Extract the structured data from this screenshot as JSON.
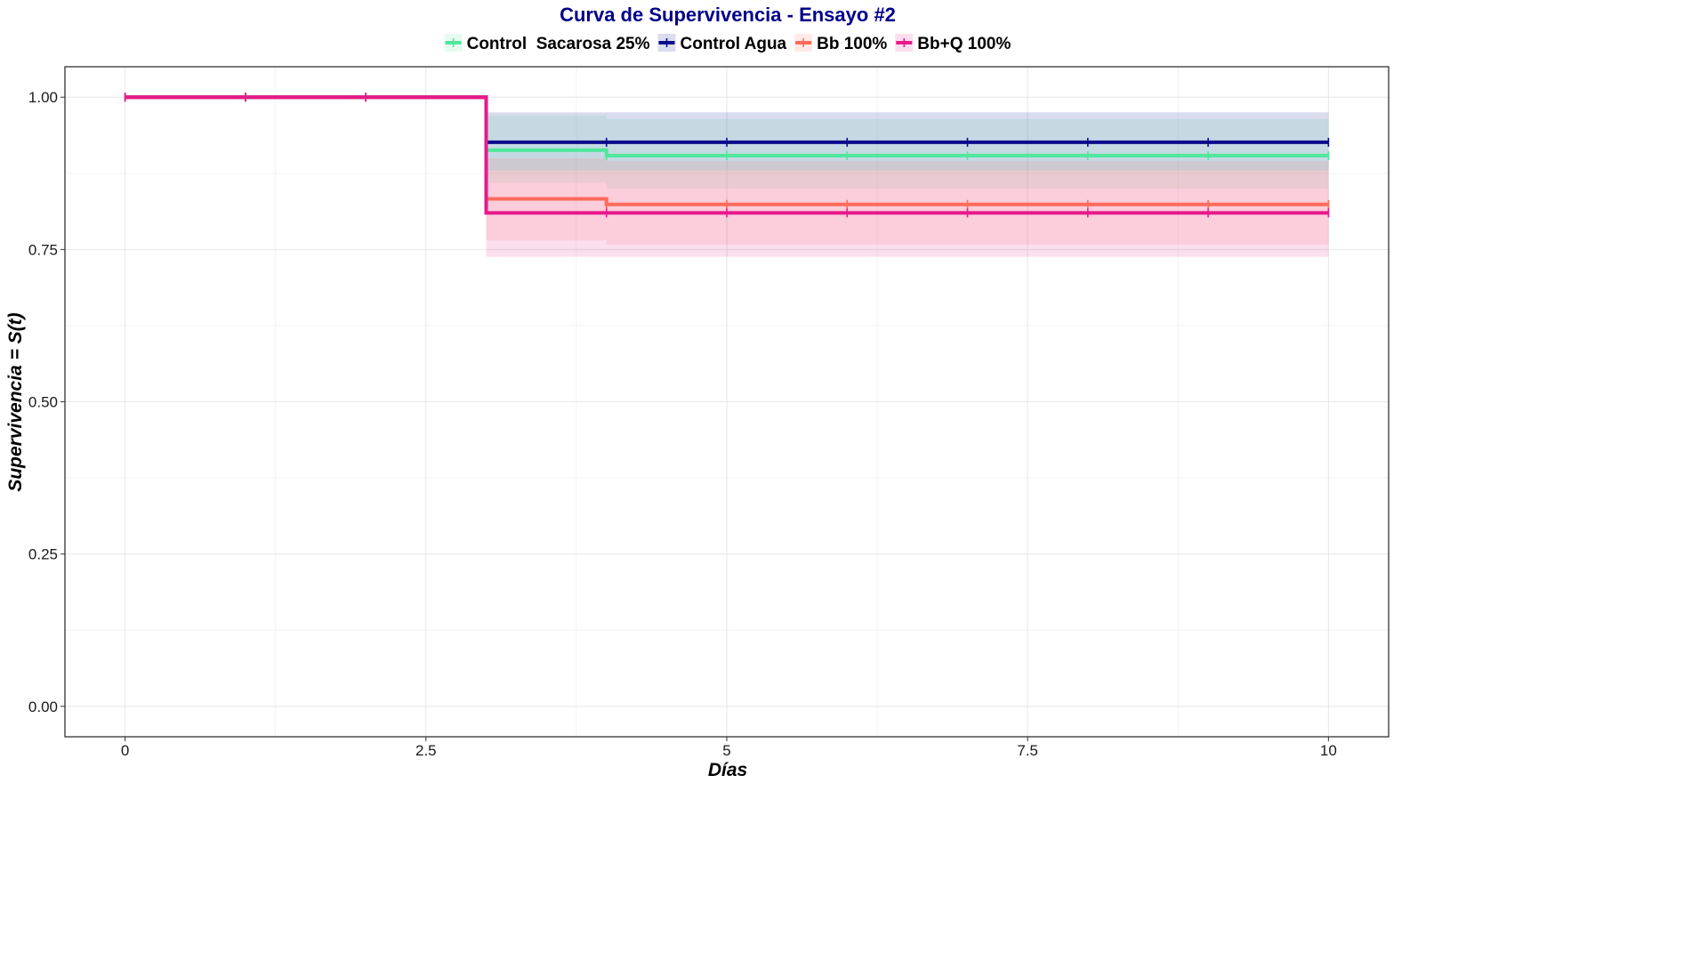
{
  "chart_data": {
    "type": "line",
    "step": true,
    "title": "Curva de Supervivencia - Ensayo #2",
    "xlabel": "Días",
    "ylabel": "Supervivencia = S(t)",
    "xlim": [
      -0.5,
      10.5
    ],
    "ylim": [
      -0.05,
      1.05
    ],
    "xticks": [
      0,
      2.5,
      5,
      7.5,
      10
    ],
    "xtick_labels": [
      "0",
      "2.5",
      "5",
      "7.5",
      "10"
    ],
    "yticks": [
      0,
      0.25,
      0.5,
      0.75,
      1
    ],
    "ytick_labels": [
      "0.00",
      "0.25",
      "0.50",
      "0.75",
      "1.00"
    ],
    "grid": true,
    "legend_position": "top",
    "title_color": "#00008B",
    "series": [
      {
        "name": "Control  Sacarosa 25%",
        "color": "#4EE89A",
        "x": [
          0,
          3,
          4,
          10
        ],
        "y": [
          1.0,
          0.913,
          0.904,
          0.904
        ],
        "ci_lower": [
          1.0,
          0.86,
          0.85,
          0.85
        ],
        "ci_upper": [
          1.0,
          0.97,
          0.965,
          0.965
        ],
        "censor_x": [
          0,
          1,
          2,
          4,
          5,
          6,
          7,
          8,
          9,
          10
        ]
      },
      {
        "name": "Control Agua",
        "color": "#0A0A8C",
        "x": [
          0,
          3,
          10
        ],
        "y": [
          1.0,
          0.926,
          0.926
        ],
        "ci_lower": [
          1.0,
          0.88,
          0.88
        ],
        "ci_upper": [
          1.0,
          0.975,
          0.975
        ],
        "censor_x": [
          0,
          1,
          2,
          4,
          5,
          6,
          7,
          8,
          9,
          10
        ]
      },
      {
        "name": "Bb 100%",
        "color": "#FF6A5A",
        "x": [
          0,
          3,
          4,
          10
        ],
        "y": [
          1.0,
          0.833,
          0.824,
          0.824
        ],
        "ci_lower": [
          1.0,
          0.765,
          0.758,
          0.758
        ],
        "ci_upper": [
          1.0,
          0.9,
          0.895,
          0.895
        ],
        "censor_x": [
          0,
          1,
          2,
          4,
          5,
          6,
          7,
          8,
          9,
          10
        ]
      },
      {
        "name": "Bb+Q 100%",
        "color": "#E8198B",
        "x": [
          0,
          3,
          10
        ],
        "y": [
          1.0,
          0.81,
          0.81
        ],
        "ci_lower": [
          1.0,
          0.738,
          0.738
        ],
        "ci_upper": [
          1.0,
          0.88,
          0.88
        ],
        "censor_x": [
          0,
          1,
          2,
          4,
          5,
          6,
          7,
          8,
          9,
          10
        ]
      }
    ]
  }
}
